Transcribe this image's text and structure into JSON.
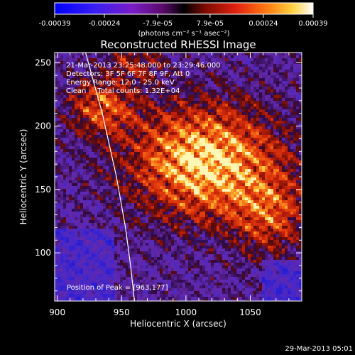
{
  "chart_data": {
    "type": "heatmap",
    "title": "Reconstructed RHESSI Image",
    "xlabel": "Heliocentric X (arcsec)",
    "ylabel": "Heliocentric Y (arcsec)",
    "xlim": [
      898,
      1090
    ],
    "ylim": [
      62,
      258
    ],
    "x_ticks": [
      {
        "value": 900,
        "label": "900"
      },
      {
        "value": 950,
        "label": "950"
      },
      {
        "value": 1000,
        "label": "1000"
      },
      {
        "value": 1050,
        "label": "1050"
      }
    ],
    "y_ticks": [
      {
        "value": 100,
        "label": "100"
      },
      {
        "value": 150,
        "label": "150"
      },
      {
        "value": 200,
        "label": "200"
      },
      {
        "value": 250,
        "label": "250"
      }
    ],
    "colorbar": {
      "min": -0.00039,
      "max": 0.00039,
      "tick_labels": [
        "-0.00039",
        "-0.00024",
        "-7.9e-05",
        "7.9e-05",
        "0.00024",
        "0.00039"
      ],
      "unit_label": "(photons cm⁻² s⁻¹ asec⁻²)"
    },
    "annotations": [
      "21-Mar-2013 23:25:48.000 to 23:29:46.000",
      "Detectors: 3F 5F 6F 7F 8F 9F, Att 0",
      "Energy Range: 12.0 - 25.0 keV",
      "Clean     Total counts: 1.32E+04"
    ],
    "peak_label": "Position of Peak = [963,177]",
    "peak": [
      963,
      177
    ],
    "limb": [
      [
        922,
        258
      ],
      [
        935,
        210
      ],
      [
        946,
        160
      ],
      [
        953,
        120
      ],
      [
        957,
        90
      ],
      [
        960,
        62
      ]
    ]
  },
  "footer": {
    "date": "29-Mar-2013 05:01"
  },
  "colors": {
    "background": "#000000",
    "axes": "#ffffff",
    "bright": "#ffe066",
    "mid": "#d83a0a",
    "dim": "#2a0a44"
  }
}
